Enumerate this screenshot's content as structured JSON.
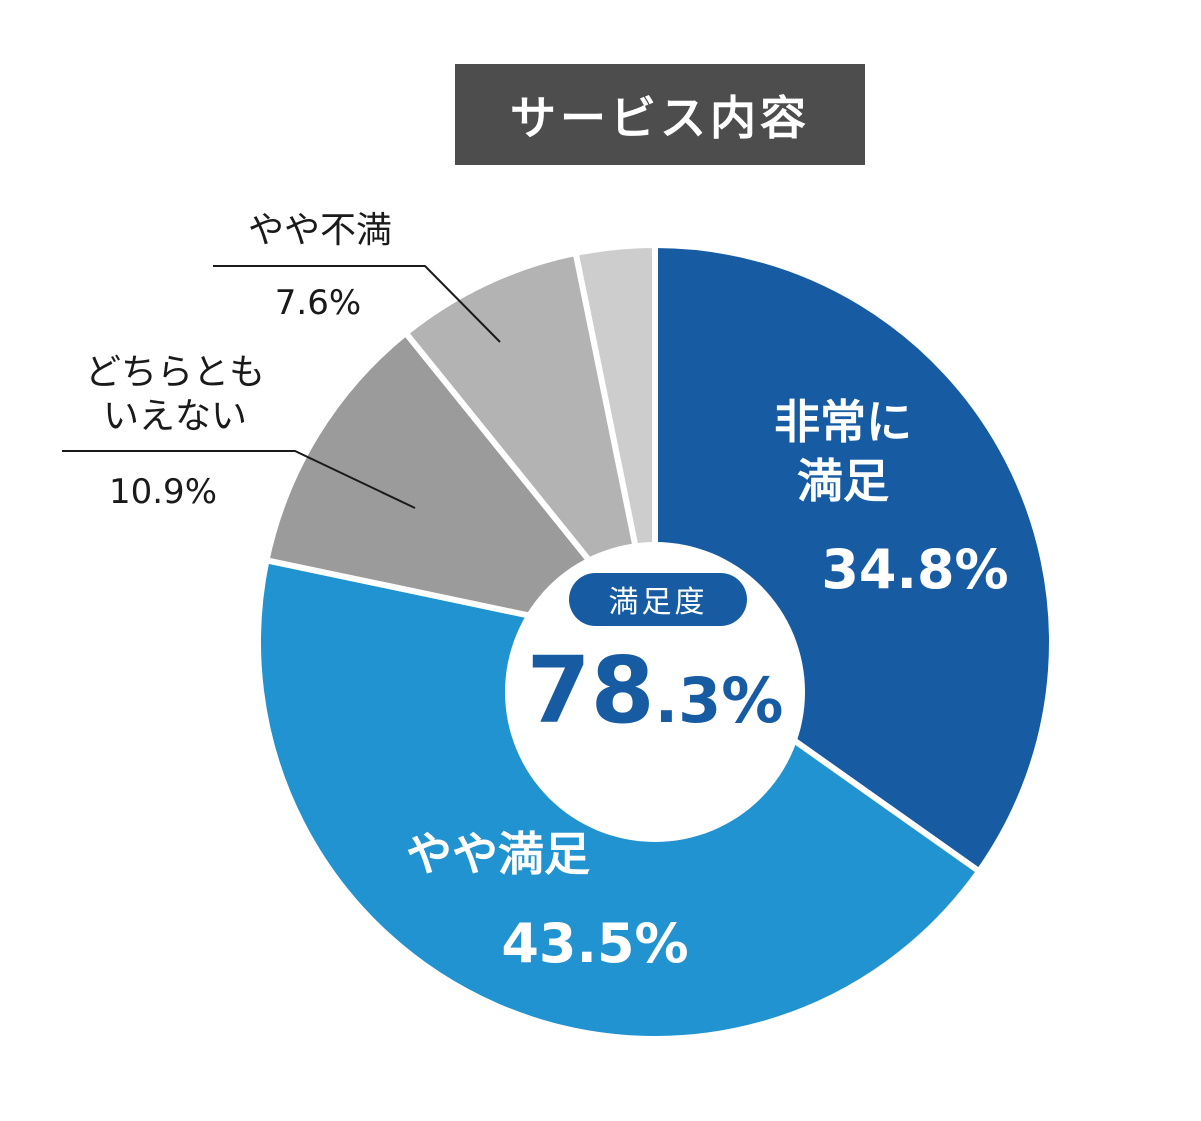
{
  "title": "サービス内容",
  "center": {
    "label": "満足度",
    "value_main": "78",
    "value_decimal": ".3%"
  },
  "chart_data": {
    "type": "pie",
    "title": "サービス内容",
    "slices": [
      {
        "label": "非常に満足",
        "label_lines": [
          "非常に",
          "満足"
        ],
        "value": 34.8,
        "value_label": "34.8%",
        "color": "#175ca3"
      },
      {
        "label": "やや満足",
        "label_lines": [
          "やや満足"
        ],
        "value": 43.5,
        "value_label": "43.5%",
        "color": "#2193d0"
      },
      {
        "label": "どちらともいえない",
        "label_lines": [
          "どちらとも",
          "いえない"
        ],
        "value": 10.9,
        "value_label": "10.9%",
        "color": "#9b9b9b"
      },
      {
        "label": "やや不満",
        "label_lines": [
          "やや不満"
        ],
        "value": 7.6,
        "value_label": "7.6%",
        "color": "#b3b3b3"
      },
      {
        "label": "",
        "label_lines": [],
        "value": 3.2,
        "value_label": "",
        "color": "#cdcdcd"
      }
    ],
    "center_summary": "78.3%",
    "legend": "none"
  },
  "colors": {
    "title_bg": "#4d4d4d",
    "center_pill": "#175ca3",
    "center_text": "#175ca3",
    "leader_line": "#1a1a1a",
    "outside_text": "#1a1a1a",
    "separator": "#ffffff"
  }
}
